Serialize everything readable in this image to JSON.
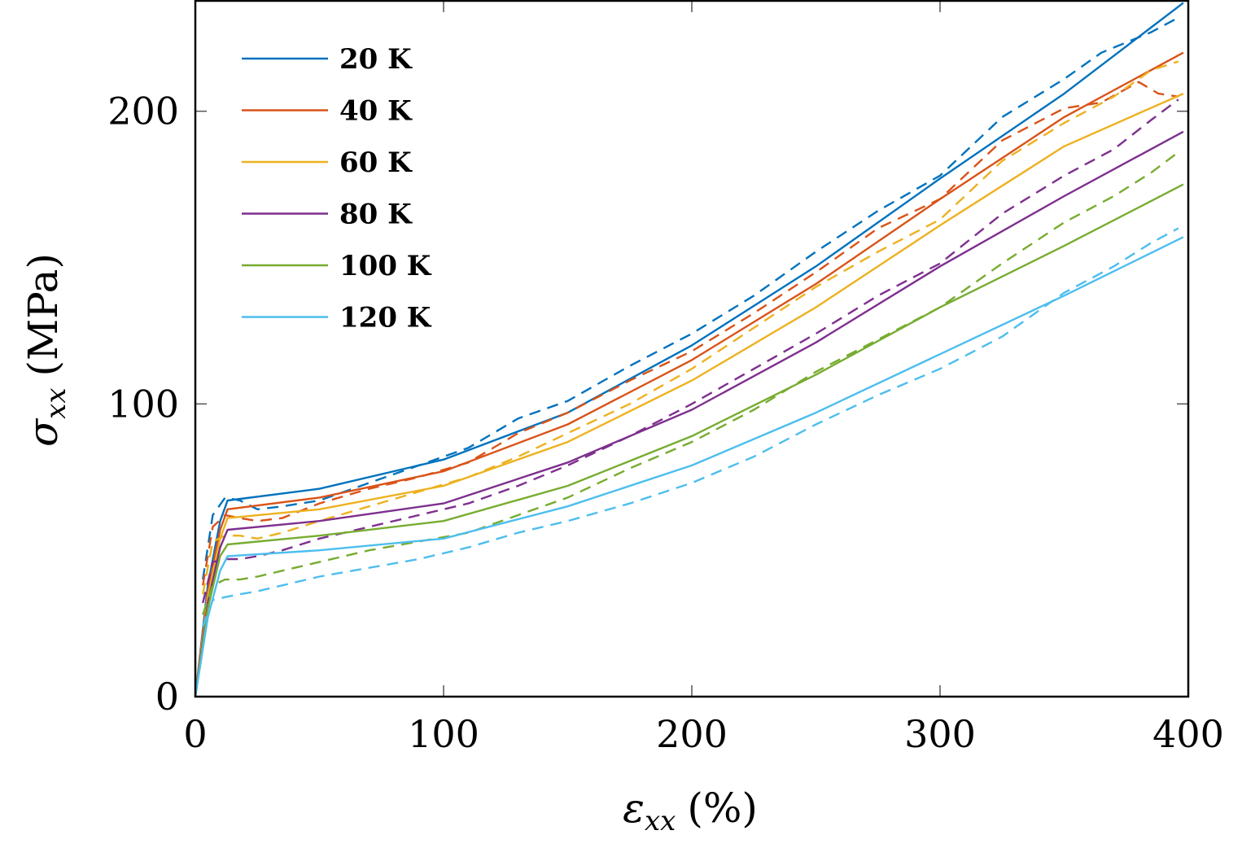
{
  "chart_data": {
    "type": "line",
    "xlabel_symbol": "ε",
    "xlabel_sub": "xx",
    "xlabel_unit": "(%)",
    "ylabel_symbol": "σ",
    "ylabel_sub": "xx",
    "ylabel_unit": "(MPa)",
    "xlim": [
      0,
      400
    ],
    "ylim": [
      0,
      238
    ],
    "xticks": [
      0,
      100,
      200,
      300,
      400
    ],
    "yticks": [
      0,
      100,
      200
    ],
    "xtick_labels": [
      "0",
      "100",
      "200",
      "300",
      "400"
    ],
    "ytick_labels": [
      "0",
      "100",
      "200"
    ],
    "legend_position": "top-left",
    "grid": false,
    "series": [
      {
        "name": "20 K",
        "color": "#0072BD",
        "model": [
          [
            0,
            0
          ],
          [
            5,
            38
          ],
          [
            10,
            60
          ],
          [
            13,
            67
          ],
          [
            50,
            71
          ],
          [
            100,
            81
          ],
          [
            150,
            97
          ],
          [
            200,
            120
          ],
          [
            250,
            147
          ],
          [
            300,
            177
          ],
          [
            350,
            206
          ],
          [
            398,
            237
          ]
        ],
        "experiment": [
          [
            3,
            40
          ],
          [
            7,
            62
          ],
          [
            12,
            68
          ],
          [
            18,
            67
          ],
          [
            25,
            64
          ],
          [
            35,
            65
          ],
          [
            50,
            67
          ],
          [
            70,
            73
          ],
          [
            90,
            79
          ],
          [
            110,
            85
          ],
          [
            130,
            95
          ],
          [
            150,
            101
          ],
          [
            175,
            113
          ],
          [
            200,
            124
          ],
          [
            225,
            137
          ],
          [
            250,
            152
          ],
          [
            275,
            166
          ],
          [
            300,
            178
          ],
          [
            325,
            198
          ],
          [
            350,
            211
          ],
          [
            365,
            220
          ],
          [
            385,
            227
          ],
          [
            396,
            232
          ]
        ]
      },
      {
        "name": "40 K",
        "color": "#D95319",
        "model": [
          [
            0,
            0
          ],
          [
            5,
            36
          ],
          [
            10,
            57
          ],
          [
            13,
            64
          ],
          [
            50,
            68
          ],
          [
            100,
            77
          ],
          [
            150,
            93
          ],
          [
            200,
            115
          ],
          [
            250,
            141
          ],
          [
            300,
            170
          ],
          [
            350,
            198
          ],
          [
            398,
            220
          ]
        ],
        "experiment": [
          [
            3,
            38
          ],
          [
            7,
            58
          ],
          [
            12,
            62
          ],
          [
            18,
            61
          ],
          [
            25,
            60
          ],
          [
            35,
            61
          ],
          [
            50,
            66
          ],
          [
            70,
            71
          ],
          [
            90,
            75
          ],
          [
            110,
            80
          ],
          [
            130,
            90
          ],
          [
            150,
            97
          ],
          [
            175,
            108
          ],
          [
            200,
            118
          ],
          [
            225,
            131
          ],
          [
            250,
            145
          ],
          [
            275,
            160
          ],
          [
            300,
            170
          ],
          [
            325,
            190
          ],
          [
            350,
            201
          ],
          [
            365,
            203
          ],
          [
            380,
            210
          ],
          [
            388,
            206
          ],
          [
            396,
            205
          ]
        ]
      },
      {
        "name": "60 K",
        "color": "#EDB120",
        "model": [
          [
            0,
            0
          ],
          [
            5,
            34
          ],
          [
            10,
            54
          ],
          [
            13,
            61
          ],
          [
            50,
            64
          ],
          [
            100,
            72
          ],
          [
            150,
            87
          ],
          [
            200,
            108
          ],
          [
            250,
            133
          ],
          [
            300,
            161
          ],
          [
            350,
            188
          ],
          [
            398,
            206
          ]
        ],
        "experiment": [
          [
            3,
            35
          ],
          [
            7,
            53
          ],
          [
            12,
            55
          ],
          [
            18,
            55
          ],
          [
            25,
            54
          ],
          [
            35,
            56
          ],
          [
            50,
            60
          ],
          [
            70,
            65
          ],
          [
            90,
            70
          ],
          [
            110,
            75
          ],
          [
            130,
            82
          ],
          [
            150,
            90
          ],
          [
            175,
            100
          ],
          [
            200,
            112
          ],
          [
            225,
            126
          ],
          [
            250,
            140
          ],
          [
            275,
            152
          ],
          [
            300,
            163
          ],
          [
            325,
            183
          ],
          [
            350,
            196
          ],
          [
            370,
            205
          ],
          [
            385,
            214
          ],
          [
            396,
            217
          ]
        ]
      },
      {
        "name": "80 K",
        "color": "#7E2F8E",
        "model": [
          [
            0,
            0
          ],
          [
            5,
            32
          ],
          [
            10,
            51
          ],
          [
            13,
            57
          ],
          [
            50,
            60
          ],
          [
            100,
            66
          ],
          [
            150,
            80
          ],
          [
            200,
            98
          ],
          [
            250,
            121
          ],
          [
            300,
            147
          ],
          [
            350,
            171
          ],
          [
            398,
            193
          ]
        ],
        "experiment": [
          [
            3,
            32
          ],
          [
            7,
            46
          ],
          [
            12,
            47
          ],
          [
            18,
            47
          ],
          [
            25,
            48
          ],
          [
            35,
            50
          ],
          [
            50,
            54
          ],
          [
            70,
            58
          ],
          [
            90,
            62
          ],
          [
            110,
            66
          ],
          [
            130,
            72
          ],
          [
            150,
            79
          ],
          [
            175,
            89
          ],
          [
            200,
            100
          ],
          [
            225,
            112
          ],
          [
            250,
            124
          ],
          [
            275,
            137
          ],
          [
            300,
            148
          ],
          [
            325,
            165
          ],
          [
            350,
            178
          ],
          [
            370,
            187
          ],
          [
            385,
            197
          ],
          [
            396,
            204
          ]
        ]
      },
      {
        "name": "100 K",
        "color": "#77AC30",
        "model": [
          [
            0,
            0
          ],
          [
            5,
            30
          ],
          [
            10,
            48
          ],
          [
            13,
            52
          ],
          [
            50,
            55
          ],
          [
            100,
            60
          ],
          [
            150,
            72
          ],
          [
            200,
            89
          ],
          [
            250,
            110
          ],
          [
            300,
            133
          ],
          [
            350,
            154
          ],
          [
            398,
            175
          ]
        ],
        "experiment": [
          [
            3,
            28
          ],
          [
            7,
            38
          ],
          [
            12,
            40
          ],
          [
            18,
            40
          ],
          [
            25,
            41
          ],
          [
            35,
            43
          ],
          [
            50,
            46
          ],
          [
            70,
            50
          ],
          [
            90,
            53
          ],
          [
            110,
            56
          ],
          [
            130,
            62
          ],
          [
            150,
            68
          ],
          [
            175,
            78
          ],
          [
            200,
            87
          ],
          [
            225,
            98
          ],
          [
            250,
            111
          ],
          [
            275,
            122
          ],
          [
            300,
            133
          ],
          [
            325,
            148
          ],
          [
            350,
            162
          ],
          [
            370,
            171
          ],
          [
            385,
            179
          ],
          [
            396,
            186
          ]
        ]
      },
      {
        "name": "120 K",
        "color": "#4DBEEE",
        "model": [
          [
            0,
            0
          ],
          [
            5,
            27
          ],
          [
            10,
            43
          ],
          [
            13,
            48
          ],
          [
            50,
            50
          ],
          [
            100,
            54
          ],
          [
            150,
            65
          ],
          [
            200,
            79
          ],
          [
            250,
            97
          ],
          [
            300,
            117
          ],
          [
            350,
            137
          ],
          [
            398,
            157
          ]
        ],
        "experiment": [
          [
            3,
            24
          ],
          [
            7,
            33
          ],
          [
            12,
            34
          ],
          [
            18,
            35
          ],
          [
            25,
            36
          ],
          [
            35,
            38
          ],
          [
            50,
            41
          ],
          [
            70,
            44
          ],
          [
            90,
            47
          ],
          [
            110,
            51
          ],
          [
            130,
            56
          ],
          [
            150,
            60
          ],
          [
            175,
            66
          ],
          [
            200,
            73
          ],
          [
            225,
            82
          ],
          [
            250,
            93
          ],
          [
            275,
            103
          ],
          [
            300,
            112
          ],
          [
            325,
            123
          ],
          [
            350,
            138
          ],
          [
            370,
            147
          ],
          [
            385,
            155
          ],
          [
            396,
            160
          ]
        ]
      }
    ]
  }
}
